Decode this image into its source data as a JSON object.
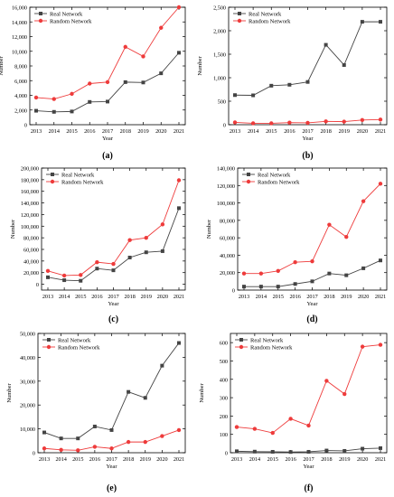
{
  "colors": {
    "real": "#444444",
    "random": "#ee3b3b"
  },
  "chart_data": [
    {
      "type": "line",
      "panel_label": "(a)",
      "x": [
        2013,
        2014,
        2015,
        2016,
        2017,
        2018,
        2019,
        2020,
        2021
      ],
      "xlabel": "Year",
      "ylabel": "Number",
      "ylim": [
        0,
        16000
      ],
      "yticks": [
        0,
        2000,
        4000,
        6000,
        8000,
        10000,
        12000,
        14000,
        16000
      ],
      "ytick_labels": [
        "0",
        "2,000",
        "4,000",
        "6,000",
        "8,000",
        "10,000",
        "12,000",
        "14,000",
        "16,000"
      ],
      "legend_position": "top-left",
      "series": [
        {
          "name": "Real Network",
          "marker": "square",
          "values": [
            1900,
            1750,
            1800,
            3100,
            3150,
            5800,
            5750,
            7000,
            9800
          ]
        },
        {
          "name": "Random Network",
          "marker": "circle",
          "values": [
            3700,
            3500,
            4200,
            5600,
            5800,
            10600,
            9300,
            13200,
            16000
          ]
        }
      ]
    },
    {
      "type": "line",
      "panel_label": "(b)",
      "x": [
        2013,
        2014,
        2015,
        2016,
        2017,
        2018,
        2019,
        2020,
        2021
      ],
      "xlabel": "Year",
      "ylabel": "Number",
      "ylim": [
        0,
        2500
      ],
      "yticks": [
        0,
        500,
        1000,
        1500,
        2000,
        2500
      ],
      "ytick_labels": [
        "0",
        "500",
        "1,000",
        "1,500",
        "2,000",
        "2,500"
      ],
      "legend_position": "top-left",
      "series": [
        {
          "name": "Real Network",
          "marker": "square",
          "values": [
            630,
            625,
            830,
            850,
            910,
            1700,
            1270,
            2190,
            2190
          ]
        },
        {
          "name": "Random Network",
          "marker": "circle",
          "values": [
            50,
            30,
            30,
            45,
            40,
            70,
            65,
            100,
            110
          ]
        }
      ]
    },
    {
      "type": "line",
      "panel_label": "(c)",
      "x": [
        2013,
        2014,
        2015,
        2016,
        2017,
        2018,
        2019,
        2020,
        2021
      ],
      "xlabel": "Year",
      "ylabel": "Number",
      "ylim": [
        -10000,
        200000
      ],
      "yticks": [
        0,
        20000,
        40000,
        60000,
        80000,
        100000,
        120000,
        140000,
        160000,
        180000,
        200000
      ],
      "ytick_labels": [
        "0",
        "20,000",
        "40,000",
        "60,000",
        "80,000",
        "100,000",
        "120,000",
        "140,000",
        "160,000",
        "180,000",
        "200,000"
      ],
      "legend_position": "top-left",
      "series": [
        {
          "name": "Real Network",
          "marker": "square",
          "values": [
            12000,
            7000,
            6000,
            27000,
            24000,
            46000,
            55000,
            57000,
            131000
          ]
        },
        {
          "name": "Random Network",
          "marker": "circle",
          "values": [
            23000,
            15000,
            16000,
            38000,
            35000,
            76000,
            80000,
            103000,
            179000
          ]
        }
      ]
    },
    {
      "type": "line",
      "panel_label": "(d)",
      "x": [
        2013,
        2014,
        2015,
        2016,
        2017,
        2018,
        2019,
        2020,
        2021
      ],
      "xlabel": "Year",
      "ylabel": "Number",
      "ylim": [
        0,
        140000
      ],
      "yticks": [
        0,
        20000,
        40000,
        60000,
        80000,
        100000,
        120000,
        140000
      ],
      "ytick_labels": [
        "0",
        "20,000",
        "40,000",
        "60,000",
        "80,000",
        "100,000",
        "120,000",
        "140,000"
      ],
      "legend_position": "top-left",
      "series": [
        {
          "name": "Real Network",
          "marker": "square",
          "values": [
            4000,
            4000,
            4000,
            7000,
            10000,
            19000,
            17000,
            25000,
            34000
          ]
        },
        {
          "name": "Random Network",
          "marker": "circle",
          "values": [
            19000,
            19000,
            22000,
            32000,
            33000,
            75000,
            61000,
            102000,
            122000
          ]
        }
      ]
    },
    {
      "type": "line",
      "panel_label": "(e)",
      "x": [
        2013,
        2014,
        2015,
        2016,
        2017,
        2018,
        2019,
        2020,
        2021
      ],
      "xlabel": "Year",
      "ylabel": "Number",
      "ylim": [
        0,
        50000
      ],
      "yticks": [
        0,
        10000,
        20000,
        30000,
        40000,
        50000
      ],
      "ytick_labels": [
        "0",
        "10,000",
        "20,000",
        "30,000",
        "40,000",
        "50,000"
      ],
      "legend_position": "top-left",
      "series": [
        {
          "name": "Real Network",
          "marker": "square",
          "values": [
            8500,
            6000,
            6000,
            11000,
            9500,
            25500,
            23000,
            36500,
            46000
          ]
        },
        {
          "name": "Random Network",
          "marker": "circle",
          "values": [
            1800,
            1200,
            1000,
            2500,
            1800,
            4500,
            4500,
            7000,
            9500
          ]
        }
      ]
    },
    {
      "type": "line",
      "panel_label": "(f)",
      "x": [
        2013,
        2014,
        2015,
        2016,
        2017,
        2018,
        2019,
        2020,
        2021
      ],
      "xlabel": "Year",
      "ylabel": "Number",
      "ylim": [
        0,
        650
      ],
      "yticks": [
        0,
        100,
        200,
        300,
        400,
        500,
        600
      ],
      "ytick_labels": [
        "0",
        "100",
        "200",
        "300",
        "400",
        "500",
        "600"
      ],
      "legend_position": "top-left",
      "series": [
        {
          "name": "Real Network",
          "marker": "square",
          "values": [
            8,
            6,
            5,
            4,
            5,
            12,
            10,
            22,
            25
          ]
        },
        {
          "name": "Random Network",
          "marker": "circle",
          "values": [
            140,
            130,
            108,
            185,
            148,
            392,
            320,
            578,
            588
          ]
        }
      ]
    }
  ]
}
